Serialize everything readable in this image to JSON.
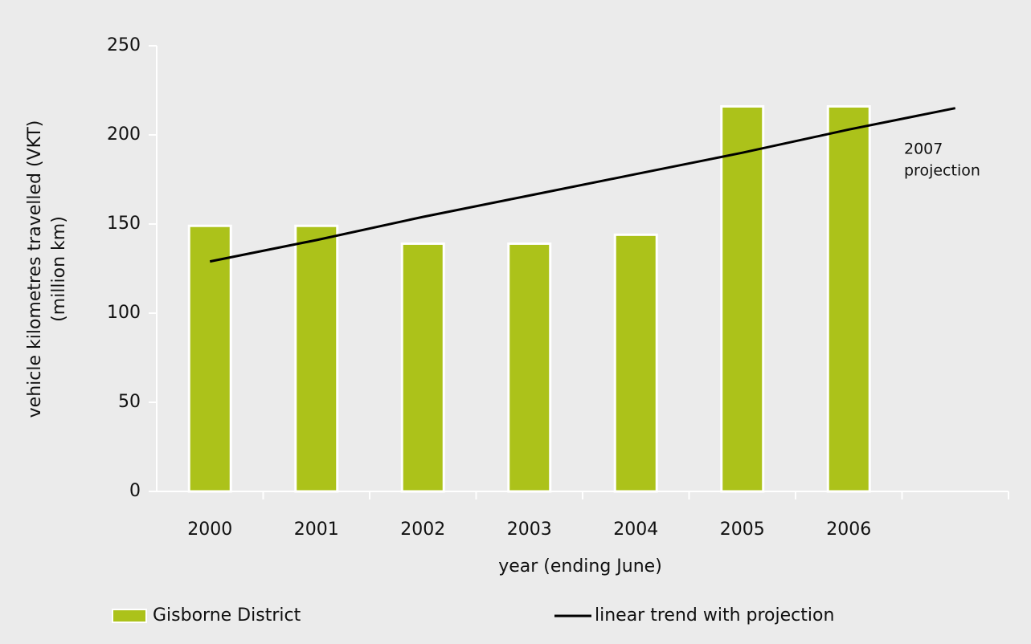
{
  "chart_data": {
    "type": "bar",
    "categories": [
      "2000",
      "2001",
      "2002",
      "2003",
      "2004",
      "2005",
      "2006",
      null
    ],
    "series": [
      {
        "name": "Gisborne District",
        "type": "bar",
        "color": "#acc21a",
        "values": [
          149,
          149,
          139,
          139,
          144,
          216,
          216,
          null
        ]
      },
      {
        "name": "linear trend with projection",
        "type": "line",
        "color": "#000000",
        "values": [
          129,
          141,
          154,
          166,
          178,
          190,
          203,
          215
        ]
      }
    ],
    "annotation": [
      "2007",
      "projection"
    ],
    "x_label": "year (ending June)",
    "y_label": [
      "vehicle kilometres travelled (VKT)",
      "(million km)"
    ],
    "ylim": [
      0,
      250
    ],
    "yticks": [
      0,
      50,
      100,
      150,
      200,
      250
    ],
    "legend": "bottom"
  }
}
